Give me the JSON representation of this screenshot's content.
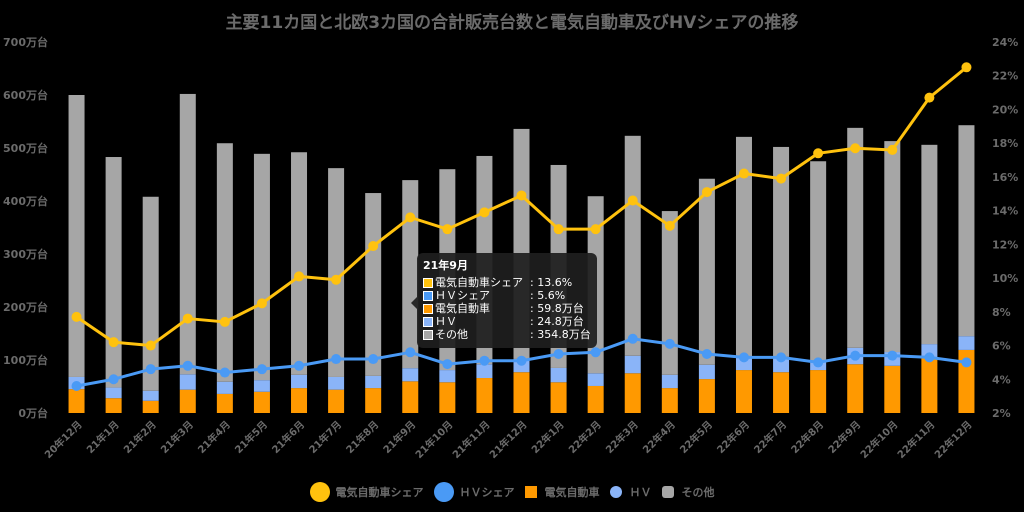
{
  "chart_data": {
    "type": "bar",
    "title": "主要11カ国と北欧3カ国の合計販売台数と電気自動車及びHVシェアの推移",
    "categories": [
      "20年12月",
      "21年1月",
      "21年2月",
      "21年3月",
      "21年4月",
      "21年5月",
      "21年6月",
      "21年7月",
      "21年8月",
      "21年9月",
      "21年10月",
      "21年11月",
      "21年12月",
      "22年1月",
      "22年2月",
      "22年3月",
      "22年4月",
      "22年5月",
      "22年6月",
      "22年7月",
      "22年8月",
      "22年9月",
      "22年10月",
      "22年11月",
      "22年12月"
    ],
    "bar_series": [
      {
        "name": "電気自動車",
        "color": "#ff9900",
        "values": [
          45,
          28,
          23,
          44,
          36,
          40,
          47,
          44,
          47,
          59.8,
          58,
          66,
          77,
          58,
          51,
          75,
          47,
          64,
          81,
          77,
          81,
          92,
          89,
          104,
          119
        ]
      },
      {
        "name": "ＨＶ",
        "color": "#8ab4f8",
        "values": [
          23,
          20,
          19,
          29,
          23,
          22,
          25,
          24,
          23,
          24.8,
          23,
          26,
          25,
          27,
          24,
          33,
          25,
          27,
          25,
          29,
          15,
          31,
          26,
          26,
          26
        ]
      },
      {
        "name": "その他",
        "color": "#a6a6a6",
        "values": [
          532,
          435,
          366,
          529,
          450,
          427,
          420,
          394,
          345,
          354.8,
          379,
          393,
          434,
          383,
          334,
          415,
          309,
          351,
          415,
          396,
          379,
          415,
          398,
          376,
          398
        ]
      }
    ],
    "line_series": [
      {
        "name": "電気自動車シェア",
        "color": "#ffc20e",
        "values": [
          7.7,
          6.2,
          6.0,
          7.6,
          7.4,
          8.5,
          10.1,
          9.9,
          11.9,
          13.6,
          12.9,
          13.9,
          14.9,
          12.9,
          12.9,
          14.6,
          13.1,
          15.1,
          16.2,
          15.9,
          17.4,
          17.7,
          17.6,
          20.7,
          22.5
        ]
      },
      {
        "name": "ＨＶシェア",
        "color": "#4a9af5",
        "values": [
          3.6,
          4.0,
          4.6,
          4.8,
          4.4,
          4.6,
          4.8,
          5.2,
          5.2,
          5.6,
          4.9,
          5.1,
          5.1,
          5.5,
          5.6,
          6.4,
          6.1,
          5.5,
          5.3,
          5.3,
          5.0,
          5.4,
          5.4,
          5.3,
          5.0
        ]
      }
    ],
    "y_left": {
      "min": 0,
      "max": 700,
      "step": 100,
      "ticks": [
        "0万台",
        "100万台",
        "200万台",
        "300万台",
        "400万台",
        "500万台",
        "600万台",
        "700万台"
      ]
    },
    "y_right": {
      "min": 2,
      "max": 24,
      "step": 2,
      "ticks": [
        "2%",
        "4%",
        "6%",
        "8%",
        "10%",
        "12%",
        "14%",
        "16%",
        "18%",
        "20%",
        "22%",
        "24%"
      ]
    },
    "grid": false,
    "legend_position": "bottom",
    "stacked": true
  },
  "tooltip": {
    "title": "21年9月",
    "rows": [
      {
        "label": "電気自動車シェア",
        "value": ": 13.6%",
        "color": "#ffc20e"
      },
      {
        "label": "ＨＶシェア",
        "value": ": 5.6%",
        "color": "#4a9af5"
      },
      {
        "label": "電気自動車",
        "value": ": 59.8万台",
        "color": "#ff9900"
      },
      {
        "label": "ＨＶ",
        "value": ": 24.8万台",
        "color": "#8ab4f8"
      },
      {
        "label": "その他",
        "value": ": 354.8万台",
        "color": "#a6a6a6"
      }
    ]
  },
  "legend": [
    {
      "label": "電気自動車シェア",
      "color": "#ffc20e",
      "shape": "circle-big"
    },
    {
      "label": "ＨＶシェア",
      "color": "#4a9af5",
      "shape": "circle-big"
    },
    {
      "label": "電気自動車",
      "color": "#ff9900",
      "shape": "square"
    },
    {
      "label": "ＨＶ",
      "color": "#8ab4f8",
      "shape": "circle-small"
    },
    {
      "label": "その他",
      "color": "#a6a6a6",
      "shape": "round-square"
    }
  ]
}
